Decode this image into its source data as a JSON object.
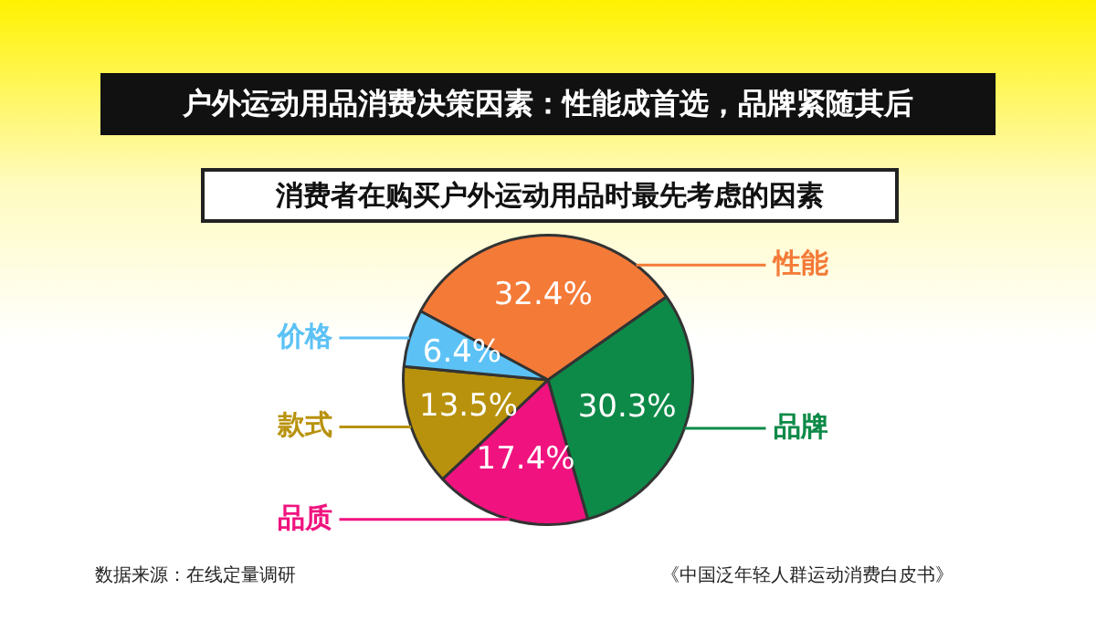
{
  "chart_data": {
    "type": "pie",
    "title": "户外运动用品消费决策因素：性能成首选，品牌紧随其后",
    "subtitle": "消费者在购买户外运动用品时最先考虑的因素",
    "categories": [
      "性能",
      "品牌",
      "品质",
      "款式",
      "价格"
    ],
    "values": [
      32.4,
      30.3,
      17.4,
      13.5,
      6.4
    ],
    "colors": [
      "#f47a38",
      "#0d8a48",
      "#f0137f",
      "#b8920c",
      "#5cc2f5"
    ],
    "value_labels": [
      "32.4%",
      "30.3%",
      "17.4%",
      "13.5%",
      "6.4%"
    ],
    "legend": false,
    "annotations": [
      "数据来源：在线定量调研",
      "《中国泛年轻人群运动消费白皮书》"
    ]
  }
}
